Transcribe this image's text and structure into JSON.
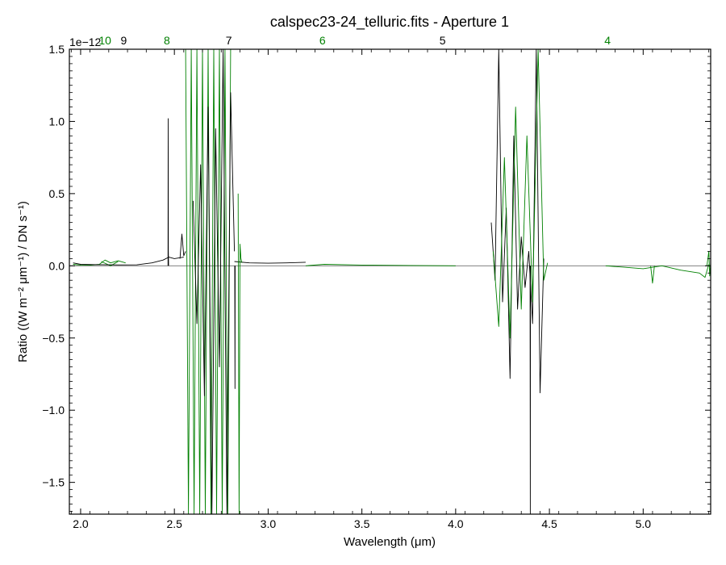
{
  "chart_data": {
    "type": "line",
    "title": "calspec23-24_telluric.fits - Aperture 1",
    "xlabel": "Wavelength (μm)",
    "ylabel": "Ratio ((W m⁻² μm⁻¹) / DN s⁻¹)",
    "offset_text": "1e−12",
    "xlim": [
      1.94,
      5.36
    ],
    "ylim": [
      -1.72,
      1.5
    ],
    "x_ticks": [
      2.0,
      2.5,
      3.0,
      3.5,
      4.0,
      4.5,
      5.0
    ],
    "x_tick_labels": [
      "2.0",
      "2.5",
      "3.0",
      "3.5",
      "4.0",
      "4.5",
      "5.0"
    ],
    "y_ticks": [
      -1.5,
      -1.0,
      -0.5,
      0.0,
      0.5,
      1.0,
      1.5
    ],
    "y_tick_labels": [
      "−1.5",
      "−1.0",
      "−0.5",
      "0.0",
      "0.5",
      "1.0",
      "1.5"
    ],
    "zero_line": true,
    "grid": false,
    "colors": {
      "even_order": "#000000",
      "odd_order": "#008000",
      "zero_line": "#808080"
    },
    "order_labels": [
      {
        "text": "10",
        "x": 2.13,
        "color": "#008000"
      },
      {
        "text": "9",
        "x": 2.23,
        "color": "#000000"
      },
      {
        "text": "8",
        "x": 2.46,
        "color": "#008000"
      },
      {
        "text": "7",
        "x": 2.79,
        "color": "#000000"
      },
      {
        "text": "6",
        "x": 3.29,
        "color": "#008000"
      },
      {
        "text": "5",
        "x": 3.93,
        "color": "#000000"
      },
      {
        "text": "4",
        "x": 4.81,
        "color": "#008000"
      }
    ],
    "series": [
      {
        "color": "#008000",
        "x": [
          1.96,
          2.0,
          2.05,
          2.1,
          2.13,
          2.16,
          2.2,
          2.24
        ],
        "y": [
          0.01,
          0.005,
          0.004,
          0.01,
          0.04,
          0.02,
          0.035,
          0.02
        ]
      },
      {
        "color": "#008000",
        "x": [
          2.11,
          2.16,
          2.2
        ],
        "y": [
          0.03,
          0.0,
          0.03
        ]
      },
      {
        "color": "#000000",
        "x": [
          1.96,
          2.0,
          2.1,
          2.2,
          2.3,
          2.38,
          2.44,
          2.47,
          2.5,
          2.55
        ],
        "y": [
          0.02,
          0.01,
          0.008,
          0.006,
          0.007,
          0.02,
          0.04,
          0.06,
          0.05,
          0.06
        ]
      },
      {
        "color": "#000000",
        "x": [
          2.466,
          2.467,
          2.468,
          2.469
        ],
        "y": [
          0.0,
          1.02,
          0.1,
          0.0
        ]
      },
      {
        "color": "#000000",
        "x": [
          2.53,
          2.54,
          2.55,
          2.56
        ],
        "y": [
          0.05,
          0.22,
          0.07,
          0.1
        ]
      },
      {
        "color": "#000000",
        "x": [
          2.82,
          2.9,
          3.0,
          3.1,
          3.2
        ],
        "y": [
          0.03,
          0.02,
          0.018,
          0.02,
          0.025
        ]
      },
      {
        "color": "#008000",
        "x": [
          2.56,
          2.575,
          2.59,
          2.605,
          2.62,
          2.635,
          2.65,
          2.665,
          2.68,
          2.695,
          2.71,
          2.725,
          2.74,
          2.755,
          2.77,
          2.785,
          2.8
        ],
        "y": [
          1.5,
          -1.72,
          1.5,
          -1.72,
          1.5,
          -1.72,
          1.5,
          -1.72,
          1.5,
          -1.72,
          1.5,
          -1.72,
          1.5,
          -1.72,
          1.5,
          -1.72,
          1.5
        ]
      },
      {
        "color": "#000000",
        "x": [
          2.6,
          2.62,
          2.64,
          2.66,
          2.68,
          2.7,
          2.72,
          2.74,
          2.76,
          2.78,
          2.8,
          2.82
        ],
        "y": [
          0.45,
          -0.4,
          0.7,
          -0.9,
          1.1,
          -1.72,
          0.95,
          -0.7,
          1.5,
          -1.72,
          1.2,
          0.1
        ]
      },
      {
        "color": "#000000",
        "x": [
          2.822,
          2.823,
          2.824
        ],
        "y": [
          0.0,
          -0.85,
          0.0
        ]
      },
      {
        "color": "#008000",
        "x": [
          2.84,
          2.845,
          2.85,
          2.855,
          2.86
        ],
        "y": [
          0.5,
          -1.72,
          0.15,
          0.05,
          0.02
        ]
      },
      {
        "color": "#008000",
        "x": [
          3.2,
          3.3,
          3.5,
          3.7,
          4.0
        ],
        "y": [
          0.0,
          0.01,
          0.005,
          0.003,
          0.0
        ]
      },
      {
        "color": "#000000",
        "x": [
          4.19,
          4.21,
          4.23,
          4.25,
          4.27,
          4.29,
          4.31,
          4.33,
          4.35,
          4.37,
          4.39,
          4.41,
          4.43,
          4.45,
          4.47
        ],
        "y": [
          0.3,
          -0.1,
          1.5,
          -0.25,
          0.4,
          -0.78,
          0.9,
          -0.3,
          0.2,
          -0.15,
          0.1,
          -0.4,
          1.5,
          -0.88,
          0.05
        ]
      },
      {
        "color": "#000000",
        "x": [
          4.397,
          4.398,
          4.399
        ],
        "y": [
          0.0,
          -1.72,
          0.0
        ]
      },
      {
        "color": "#008000",
        "x": [
          4.2,
          4.23,
          4.26,
          4.29,
          4.32,
          4.35,
          4.38,
          4.41,
          4.44,
          4.47,
          4.49
        ],
        "y": [
          0.1,
          -0.42,
          0.75,
          -0.5,
          1.1,
          -0.3,
          0.9,
          -0.25,
          1.5,
          -0.1,
          0.02
        ]
      },
      {
        "color": "#008000",
        "x": [
          4.8,
          4.9,
          5.0,
          5.1,
          5.2,
          5.3,
          5.33,
          5.35
        ],
        "y": [
          0.0,
          -0.01,
          -0.02,
          0.0,
          -0.03,
          -0.05,
          -0.08,
          0.01
        ]
      },
      {
        "color": "#008000",
        "x": [
          5.04,
          5.05,
          5.06
        ],
        "y": [
          0.0,
          -0.12,
          0.0
        ]
      },
      {
        "color": "#008000",
        "x": [
          5.34,
          5.35,
          5.355,
          5.36
        ],
        "y": [
          0.0,
          0.1,
          -0.07,
          0.02
        ]
      }
    ]
  }
}
